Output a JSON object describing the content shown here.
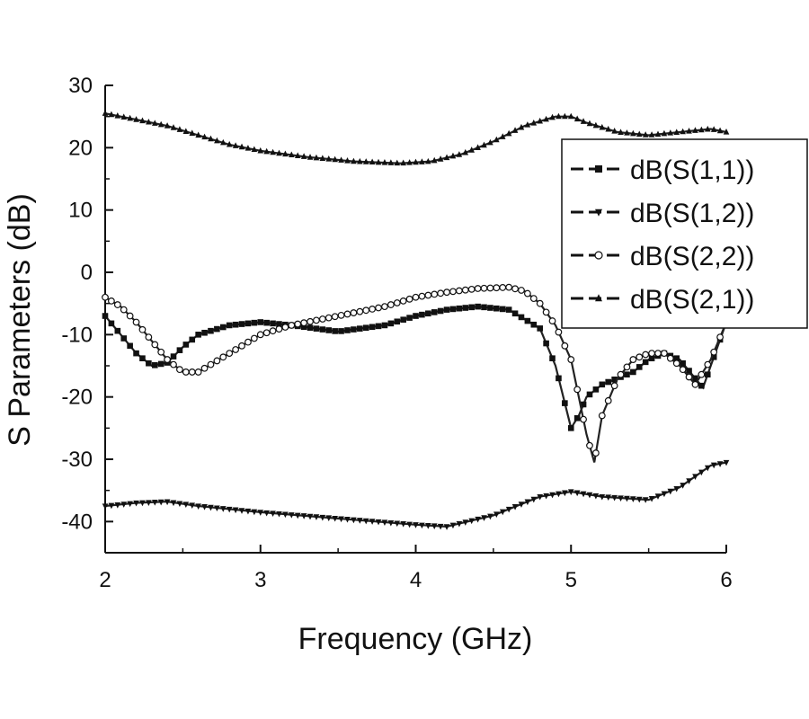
{
  "chart_data": {
    "type": "line",
    "xlabel": "Frequency (GHz)",
    "ylabel": "S Parameters (dB)",
    "xlim": [
      2,
      6
    ],
    "ylim": [
      -45,
      30
    ],
    "xticks": [
      2,
      3,
      4,
      5,
      6
    ],
    "yticks": [
      30,
      20,
      10,
      0,
      -10,
      -20,
      -30,
      -40
    ],
    "grid": false,
    "legend_position": "top-right",
    "series": [
      {
        "name": "dB(S(1,1))",
        "marker": "square",
        "x": [
          2.0,
          2.1,
          2.2,
          2.3,
          2.4,
          2.5,
          2.6,
          2.8,
          3.0,
          3.2,
          3.5,
          3.8,
          4.0,
          4.2,
          4.4,
          4.6,
          4.8,
          4.9,
          5.0,
          5.05,
          5.1,
          5.2,
          5.3,
          5.4,
          5.5,
          5.6,
          5.7,
          5.8,
          5.85,
          5.9,
          6.0
        ],
        "y": [
          -7,
          -10,
          -13,
          -15,
          -14.5,
          -12,
          -10,
          -8.5,
          -8,
          -8.5,
          -9.5,
          -8.5,
          -7,
          -6,
          -5.5,
          -6,
          -9,
          -15,
          -25,
          -23,
          -20,
          -18,
          -17,
          -16,
          -14,
          -13,
          -14,
          -17,
          -18.5,
          -15,
          -8
        ]
      },
      {
        "name": "dB(S(1,2))",
        "marker": "triangle-down",
        "x": [
          2.0,
          2.2,
          2.4,
          2.6,
          3.0,
          3.5,
          4.0,
          4.2,
          4.5,
          4.8,
          5.0,
          5.2,
          5.5,
          5.7,
          5.9,
          6.0
        ],
        "y": [
          -37.5,
          -37,
          -36.8,
          -37.5,
          -38.5,
          -39.5,
          -40.5,
          -40.8,
          -39,
          -36,
          -35.2,
          -36,
          -36.5,
          -34.5,
          -31,
          -30.5
        ]
      },
      {
        "name": "dB(S(2,2))",
        "marker": "circle-open",
        "x": [
          2.0,
          2.1,
          2.2,
          2.3,
          2.4,
          2.5,
          2.6,
          2.8,
          3.0,
          3.2,
          3.5,
          3.8,
          4.0,
          4.2,
          4.4,
          4.6,
          4.7,
          4.8,
          4.9,
          5.0,
          5.1,
          5.15,
          5.2,
          5.3,
          5.4,
          5.5,
          5.6,
          5.7,
          5.8,
          5.9,
          6.0
        ],
        "y": [
          -4,
          -5.5,
          -8,
          -11,
          -14,
          -16,
          -16,
          -13,
          -10,
          -8.5,
          -7,
          -5.5,
          -4,
          -3.2,
          -2.6,
          -2.4,
          -3,
          -5,
          -8.5,
          -14,
          -26,
          -30.5,
          -23,
          -17,
          -14,
          -13,
          -13,
          -15,
          -18,
          -14,
          -8
        ]
      },
      {
        "name": "dB(S(2,1))",
        "marker": "triangle-up",
        "x": [
          2.0,
          2.2,
          2.4,
          2.6,
          2.8,
          3.0,
          3.3,
          3.6,
          3.9,
          4.1,
          4.3,
          4.5,
          4.7,
          4.9,
          5.0,
          5.1,
          5.3,
          5.5,
          5.7,
          5.9,
          6.0
        ],
        "y": [
          25.5,
          24.5,
          23.5,
          22,
          20.5,
          19.5,
          18.5,
          17.8,
          17.5,
          17.8,
          19,
          21,
          23.5,
          25,
          25,
          24,
          22.5,
          22,
          22.5,
          23,
          22.5
        ]
      }
    ]
  }
}
